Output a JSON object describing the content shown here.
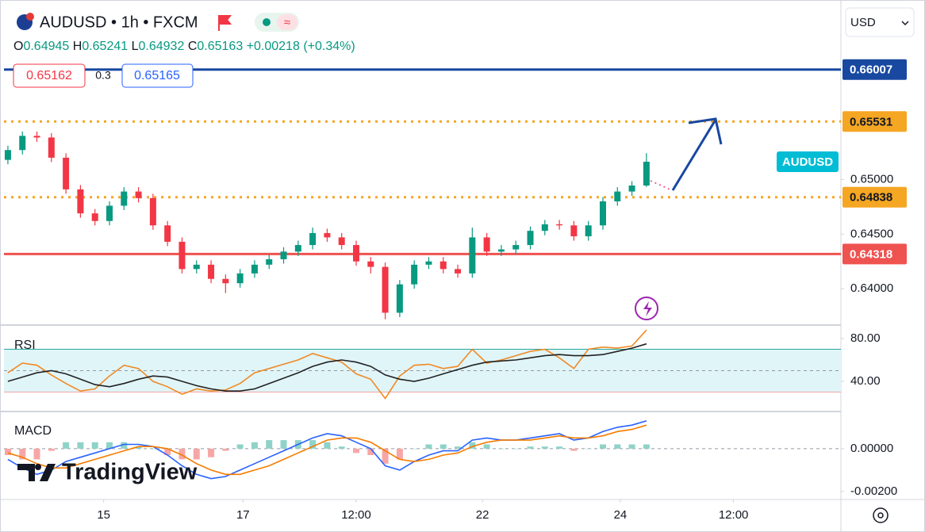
{
  "chart_data": [
    {
      "type": "candlestick",
      "title": "AUDUSD • 1h • FXCM",
      "ohlc": [
        {
          "label": "O",
          "value": 0.64945
        },
        {
          "label": "H",
          "value": 0.65241
        },
        {
          "label": "L",
          "value": 0.64932
        },
        {
          "label": "C",
          "value": 0.65163
        }
      ],
      "change": "+0.00218",
      "change_percent": "(+0.34%)",
      "sell": "0.65162",
      "spread": "0.3",
      "buy": "0.65165",
      "currency": "USD",
      "symbol_tag": "AUDUSD",
      "watermark": "TradingView",
      "up_color": "#089981",
      "down_color": "#f23645",
      "open": [
        0.6518,
        0.6527,
        0.654,
        0.65385,
        0.652,
        0.6491,
        0.6469,
        0.6462,
        0.6476,
        0.6489,
        0.6483,
        0.6458,
        0.6443,
        0.6418,
        0.6422,
        0.6409,
        0.6405,
        0.6414,
        0.6422,
        0.6427,
        0.6434,
        0.644,
        0.6451,
        0.6447,
        0.644,
        0.6425,
        0.642,
        0.6378,
        0.6404,
        0.6422,
        0.6425,
        0.6418,
        0.6414,
        0.6447,
        0.6434,
        0.6436,
        0.644,
        0.6453,
        0.6459,
        0.6458,
        0.6448,
        0.6458,
        0.648,
        0.6489,
        0.64945
      ],
      "high": [
        0.6531,
        0.6544,
        0.6544,
        0.65425,
        0.6524,
        0.6495,
        0.6473,
        0.648,
        0.6493,
        0.6493,
        0.6487,
        0.6462,
        0.6447,
        0.6426,
        0.6426,
        0.6413,
        0.6418,
        0.6426,
        0.6431,
        0.6438,
        0.6444,
        0.6456,
        0.6455,
        0.6451,
        0.6444,
        0.6429,
        0.6424,
        0.6408,
        0.6426,
        0.6429,
        0.6429,
        0.6422,
        0.6456,
        0.6451,
        0.644,
        0.6444,
        0.6457,
        0.6463,
        0.6463,
        0.6462,
        0.6462,
        0.6484,
        0.6493,
        0.64985,
        0.65241
      ],
      "low": [
        0.6514,
        0.6523,
        0.65345,
        0.6516,
        0.6487,
        0.6465,
        0.6458,
        0.6458,
        0.6472,
        0.6479,
        0.6454,
        0.6439,
        0.6414,
        0.6414,
        0.6405,
        0.6396,
        0.6401,
        0.641,
        0.6418,
        0.6423,
        0.643,
        0.6436,
        0.6443,
        0.6436,
        0.6421,
        0.6414,
        0.6372,
        0.6374,
        0.64,
        0.6418,
        0.6414,
        0.641,
        0.641,
        0.643,
        0.643,
        0.6432,
        0.6436,
        0.6449,
        0.6454,
        0.6444,
        0.6444,
        0.6454,
        0.6476,
        0.6485,
        0.64932
      ],
      "close": [
        0.6527,
        0.654,
        0.65385,
        0.652,
        0.6491,
        0.6469,
        0.6462,
        0.6476,
        0.6489,
        0.6483,
        0.6458,
        0.6443,
        0.6418,
        0.6422,
        0.6409,
        0.6405,
        0.6414,
        0.6422,
        0.6427,
        0.6434,
        0.644,
        0.6451,
        0.6447,
        0.644,
        0.6425,
        0.642,
        0.6378,
        0.6404,
        0.6422,
        0.6425,
        0.6418,
        0.6414,
        0.6447,
        0.6434,
        0.6436,
        0.644,
        0.6453,
        0.6459,
        0.6458,
        0.6448,
        0.6458,
        0.648,
        0.6489,
        0.64945,
        0.65163
      ],
      "ylim": [
        0.63667,
        0.66608
      ],
      "yticks": [
        {
          "value": 0.65,
          "label": "0.65000"
        },
        {
          "value": 0.645,
          "label": "0.64500"
        },
        {
          "value": 0.64,
          "label": "0.64000"
        }
      ],
      "levels": [
        {
          "value": 0.66007,
          "color": "#1848a0",
          "style": "solid"
        },
        {
          "value": 0.65531,
          "color": "#f5a623",
          "style": "dotted"
        },
        {
          "value": 0.64838,
          "color": "#f5a623",
          "style": "dotted"
        },
        {
          "value": 0.64318,
          "color": "#ef5350",
          "style": "solid"
        }
      ],
      "xlim": [
        -0.27,
        57.4
      ],
      "xticks": [
        {
          "value": 6.6,
          "label": "15"
        },
        {
          "value": 16.2,
          "label": "17"
        },
        {
          "value": 24,
          "label": "12:00"
        },
        {
          "value": 32.7,
          "label": "22"
        },
        {
          "value": 42.2,
          "label": "24"
        },
        {
          "value": 50,
          "label": "12:00"
        }
      ]
    },
    {
      "type": "line",
      "title": "RSI",
      "ylim": [
        12.6,
        91.1
      ],
      "yticks": [
        {
          "value": 80,
          "label": "80.00"
        },
        {
          "value": 40,
          "label": "40.00"
        }
      ],
      "band": [
        30,
        70
      ],
      "midline": 50,
      "series": [
        {
          "color": "#f08a24",
          "values": [
            48,
            57,
            55,
            46,
            38,
            31,
            33,
            45,
            55,
            52,
            40,
            35,
            28,
            33,
            31,
            32,
            38,
            48,
            52,
            56,
            60,
            66,
            62,
            58,
            47,
            42,
            24,
            45,
            55,
            56,
            52,
            54,
            70,
            57,
            60,
            64,
            68,
            70,
            62,
            52,
            70,
            72,
            71,
            73,
            88
          ]
        },
        {
          "color": "#222222",
          "values": [
            40,
            44,
            48,
            50,
            47,
            42,
            37,
            35,
            38,
            42,
            45,
            44,
            40,
            36,
            33,
            31,
            31,
            33,
            38,
            43,
            48,
            54,
            58,
            60,
            58,
            54,
            46,
            42,
            40,
            43,
            47,
            51,
            55,
            58,
            59,
            60,
            62,
            64,
            65,
            64,
            64,
            65,
            68,
            71,
            75
          ]
        }
      ]
    },
    {
      "type": "combo",
      "title": "MACD",
      "ylim": [
        -0.0023,
        0.0017
      ],
      "yticks": [
        {
          "value": 0,
          "label": "0.00000"
        },
        {
          "value": -0.002,
          "label": "-0.00200"
        }
      ],
      "series": [
        {
          "type": "bar",
          "color": "#8fd3c8",
          "negative_color": "#f7a6a6",
          "values": [
            -0.0003,
            -0.0005,
            -0.0005,
            -0.0001,
            0.0003,
            0.0003,
            0.0003,
            0.0003,
            0.0003,
            0.0001,
            0.0,
            -0.0003,
            -0.0005,
            -0.0005,
            -0.0004,
            -0.0001,
            0.0002,
            0.0003,
            0.0004,
            0.0004,
            0.0004,
            0.0004,
            0.0003,
            0.0001,
            -0.0002,
            -0.0003,
            -0.0007,
            -0.0005,
            0.0,
            0.0002,
            0.0002,
            0.0001,
            0.0003,
            0.0002,
            0.0,
            0.0,
            0.0001,
            0.0001,
            0.0001,
            -0.0001,
            0.0,
            0.0002,
            0.0002,
            0.0002,
            0.0002
          ]
        },
        {
          "type": "line",
          "color": "#2962ff",
          "values": [
            -0.0005,
            -0.0009,
            -0.0012,
            -0.001,
            -0.0006,
            -0.0004,
            -0.0002,
            0.0,
            0.0002,
            0.0002,
            0.0001,
            -0.0003,
            -0.0008,
            -0.0012,
            -0.0014,
            -0.0013,
            -0.001,
            -0.0007,
            -0.0004,
            -0.0001,
            0.0002,
            0.0005,
            0.0007,
            0.0006,
            0.0003,
            0.0,
            -0.0008,
            -0.001,
            -0.0006,
            -0.0003,
            -0.0001,
            -0.0001,
            0.0004,
            0.0005,
            0.0004,
            0.0004,
            0.0005,
            0.0006,
            0.0007,
            0.0004,
            0.0005,
            0.0008,
            0.001,
            0.0011,
            0.0013
          ]
        },
        {
          "type": "line",
          "color": "#f57c00",
          "values": [
            -0.0002,
            -0.0004,
            -0.0007,
            -0.0009,
            -0.0009,
            -0.0007,
            -0.0005,
            -0.0003,
            -0.0001,
            0.0001,
            0.0001,
            0.0,
            -0.0003,
            -0.0007,
            -0.001,
            -0.0012,
            -0.0012,
            -0.001,
            -0.0008,
            -0.0005,
            -0.0002,
            0.0001,
            0.0004,
            0.0005,
            0.0005,
            0.0003,
            -0.0001,
            -0.0005,
            -0.0006,
            -0.0005,
            -0.0003,
            -0.0002,
            0.0001,
            0.0003,
            0.0004,
            0.0004,
            0.0004,
            0.0005,
            0.0006,
            0.0005,
            0.0005,
            0.0006,
            0.0008,
            0.0009,
            0.0011
          ]
        }
      ]
    }
  ]
}
